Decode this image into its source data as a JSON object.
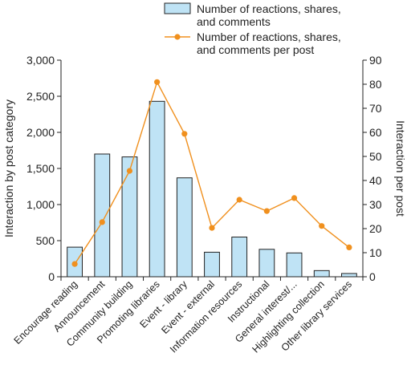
{
  "chart_data": {
    "type": "bar+line",
    "categories": [
      "Encourage reading",
      "Announcement",
      "Community building",
      "Promoting libraries",
      "Event - library",
      "Event - external",
      "Information resources",
      "Instructional",
      "General interest/...",
      "Highlighting collection",
      "Other library services"
    ],
    "series": [
      {
        "name": "Number of reactions, shares, and comments",
        "name_lines": [
          "Number of reactions, shares,",
          "and comments"
        ],
        "type": "bar",
        "axis": "left",
        "color": "#bfe3f5",
        "values": [
          410,
          1700,
          1660,
          2430,
          1370,
          340,
          550,
          380,
          330,
          85,
          45
        ]
      },
      {
        "name": "Number of reactions, shares, and comments per post",
        "name_lines": [
          "Number of reactions, shares,",
          "and comments per post"
        ],
        "type": "line",
        "axis": "right",
        "color": "#f0901e",
        "values": [
          5.3,
          22.7,
          44.0,
          80.9,
          59.4,
          20.3,
          32.0,
          27.3,
          32.7,
          21.1,
          12.2
        ]
      }
    ],
    "y_left": {
      "label": "Interaction by post category",
      "ylim": [
        0,
        3000
      ],
      "ticks": [
        0,
        500,
        1000,
        1500,
        2000,
        2500,
        3000
      ],
      "tick_labels": [
        "0",
        "500",
        "1,000",
        "1,500",
        "2,000",
        "2,500",
        "3,000"
      ]
    },
    "y_right": {
      "label": "Interaction per post",
      "ylim": [
        0,
        90
      ],
      "ticks": [
        0,
        10,
        20,
        30,
        40,
        50,
        60,
        70,
        80,
        90
      ],
      "tick_labels": [
        "0",
        "10",
        "20",
        "30",
        "40",
        "50",
        "60",
        "70",
        "80",
        "90"
      ]
    },
    "grid": false,
    "legend_position": "top-right"
  }
}
